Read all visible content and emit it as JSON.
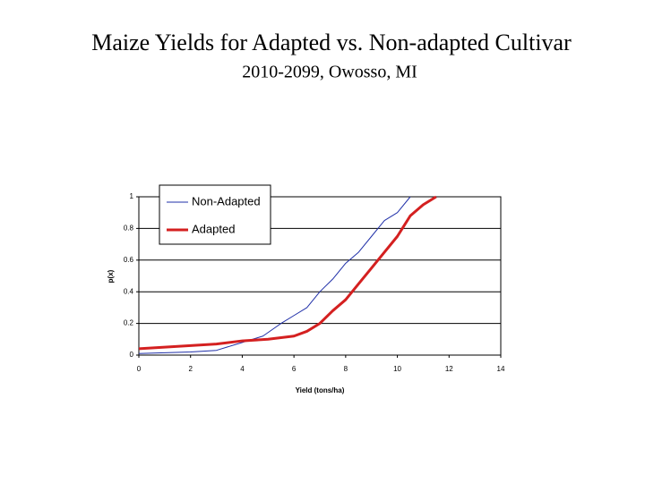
{
  "chart_data": {
    "type": "line",
    "title": "Maize Yields for Adapted vs. Non-adapted Cultivar",
    "subtitle": "2010-2099, Owosso, MI",
    "x_label": "Yield (tons/ha)",
    "y_label": "p(x)",
    "xlim": [
      0,
      14
    ],
    "xticks": [
      0,
      2,
      4,
      6,
      8,
      10,
      12,
      14
    ],
    "ylim": [
      0,
      1
    ],
    "yticks": [
      0,
      0.2,
      0.4,
      0.6,
      0.8,
      1
    ],
    "grid": true,
    "legend": "upper-left",
    "series": [
      {
        "name": "Non-Adapted",
        "color": "#1f2fa8",
        "width": 1,
        "x": [
          0,
          2,
          3,
          4,
          4.8,
          5.5,
          6,
          6.5,
          7,
          7.5,
          8,
          8.5,
          9,
          9.5,
          10,
          10.5
        ],
        "values": [
          0.01,
          0.02,
          0.03,
          0.08,
          0.12,
          0.2,
          0.25,
          0.3,
          0.4,
          0.48,
          0.58,
          0.65,
          0.75,
          0.85,
          0.9,
          1
        ]
      },
      {
        "name": "Adapted",
        "color": "#d42020",
        "width": 3,
        "x": [
          0,
          1,
          2,
          3,
          4,
          5,
          6,
          6.5,
          7,
          7.5,
          8,
          8.5,
          9,
          9.5,
          10,
          10.5,
          11,
          11.5
        ],
        "values": [
          0.04,
          0.05,
          0.06,
          0.07,
          0.09,
          0.1,
          0.12,
          0.15,
          0.2,
          0.28,
          0.35,
          0.45,
          0.55,
          0.65,
          0.75,
          0.88,
          0.95,
          1
        ]
      }
    ]
  }
}
